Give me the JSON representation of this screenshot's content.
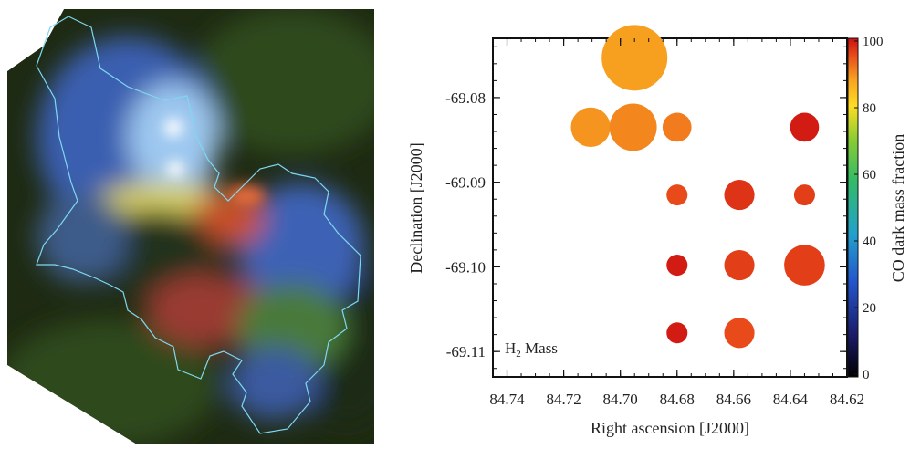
{
  "image_panel": {
    "description_name": "nebula-composite-image"
  },
  "chart_data": {
    "type": "scatter",
    "title": "",
    "xlabel": "Right ascension [J2000]",
    "ylabel": "Declination [J2000]",
    "xlim": [
      84.745,
      84.62
    ],
    "ylim": [
      -69.113,
      -69.073
    ],
    "xticks": [
      84.74,
      84.72,
      84.7,
      84.68,
      84.66,
      84.64,
      84.62
    ],
    "xtick_labels": [
      "84.74",
      "84.72",
      "84.70",
      "84.68",
      "84.66",
      "84.64",
      "84.62"
    ],
    "yticks": [
      -69.08,
      -69.09,
      -69.1,
      -69.11
    ],
    "ytick_labels": [
      "-69.08",
      "-69.09",
      "-69.10",
      "-69.11"
    ],
    "annotation": {
      "main": "H",
      "sub": "2",
      "rest": " Mass"
    },
    "colorbar": {
      "label": "CO dark mass fraction",
      "range": [
        0,
        100
      ],
      "ticks": [
        0,
        20,
        40,
        60,
        80,
        100
      ],
      "tick_labels": [
        "0",
        "20",
        "40",
        "60",
        "80",
        "100"
      ]
    },
    "points": [
      {
        "ra": 84.695,
        "dec": -69.0753,
        "mass_rel": 1.0,
        "co_dark_fraction": 88
      },
      {
        "ra": 84.7105,
        "dec": -69.0835,
        "mass_rel": 0.6,
        "co_dark_fraction": 89
      },
      {
        "ra": 84.6955,
        "dec": -69.0835,
        "mass_rel": 0.72,
        "co_dark_fraction": 90
      },
      {
        "ra": 84.68,
        "dec": -69.0835,
        "mass_rel": 0.44,
        "co_dark_fraction": 91
      },
      {
        "ra": 84.635,
        "dec": -69.0835,
        "mass_rel": 0.44,
        "co_dark_fraction": 99
      },
      {
        "ra": 84.68,
        "dec": -69.0915,
        "mass_rel": 0.32,
        "co_dark_fraction": 95
      },
      {
        "ra": 84.658,
        "dec": -69.0915,
        "mass_rel": 0.46,
        "co_dark_fraction": 97
      },
      {
        "ra": 84.635,
        "dec": -69.0915,
        "mass_rel": 0.32,
        "co_dark_fraction": 96
      },
      {
        "ra": 84.68,
        "dec": -69.0998,
        "mass_rel": 0.32,
        "co_dark_fraction": 99
      },
      {
        "ra": 84.658,
        "dec": -69.0998,
        "mass_rel": 0.46,
        "co_dark_fraction": 96
      },
      {
        "ra": 84.635,
        "dec": -69.0998,
        "mass_rel": 0.62,
        "co_dark_fraction": 96
      },
      {
        "ra": 84.68,
        "dec": -69.1078,
        "mass_rel": 0.32,
        "co_dark_fraction": 99
      },
      {
        "ra": 84.658,
        "dec": -69.1078,
        "mass_rel": 0.46,
        "co_dark_fraction": 95
      }
    ]
  }
}
